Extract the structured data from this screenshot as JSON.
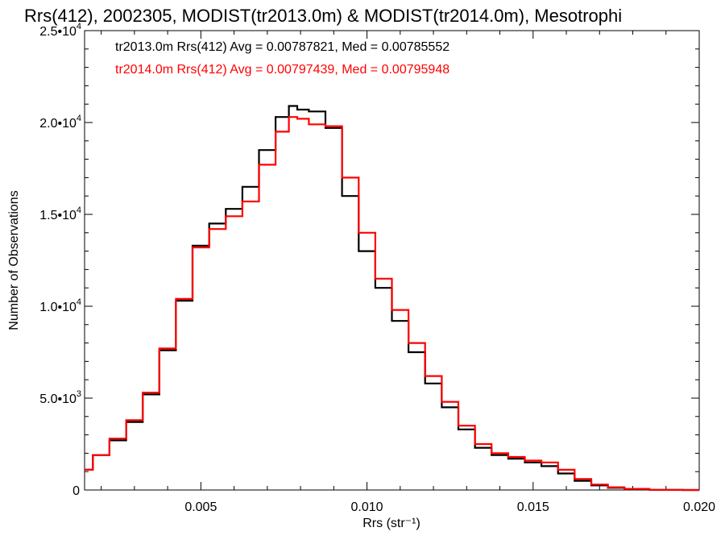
{
  "chart_data": {
    "type": "line",
    "title": "Rrs(412), 2002305, MODIST(tr2013.0m) & MODIST(tr2014.0m), Mesotrophi",
    "xlabel": "Rrs (str⁻¹)",
    "ylabel": "Number of Observations",
    "xlim": [
      0.0015,
      0.02
    ],
    "ylim": [
      0,
      25000
    ],
    "x_ticks": [
      0.005,
      0.01,
      0.015,
      0.02
    ],
    "x_tick_labels": [
      "0.005",
      "0.010",
      "0.015",
      "0.020"
    ],
    "y_ticks": [
      0,
      5000,
      10000,
      15000,
      20000,
      25000
    ],
    "y_tick_labels": [
      {
        "base": "0",
        "exp": ""
      },
      {
        "base": "5.0•10",
        "exp": "3"
      },
      {
        "base": "1.0•10",
        "exp": "4"
      },
      {
        "base": "1.5•10",
        "exp": "4"
      },
      {
        "base": "2.0•10",
        "exp": "4"
      },
      {
        "base": "2.5•10",
        "exp": "4"
      }
    ],
    "legend": [
      {
        "text": "tr2013.0m Rrs(412) Avg = 0.00787821, Med = 0.00785552",
        "color": "#000000"
      },
      {
        "text": "tr2014.0m Rrs(412) Avg = 0.00797439, Med = 0.00795948",
        "color": "#ff0000"
      }
    ],
    "legend_position": "top-left",
    "series": [
      {
        "color": "#000000",
        "x": [
          0.0015,
          0.002,
          0.0025,
          0.003,
          0.0035,
          0.004,
          0.0045,
          0.005,
          0.0055,
          0.006,
          0.0065,
          0.007,
          0.0075,
          0.0078,
          0.008,
          0.0085,
          0.009,
          0.0095,
          0.01,
          0.0105,
          0.011,
          0.0115,
          0.012,
          0.0125,
          0.013,
          0.0135,
          0.014,
          0.0145,
          0.015,
          0.0155,
          0.016,
          0.0165,
          0.017,
          0.0175,
          0.018,
          0.019,
          0.02
        ],
        "y": [
          1100,
          1900,
          2700,
          3700,
          5200,
          7600,
          10300,
          13300,
          14500,
          15300,
          16500,
          18500,
          20300,
          20900,
          20700,
          20600,
          19700,
          16000,
          13000,
          11000,
          9200,
          7500,
          5800,
          4500,
          3300,
          2300,
          1900,
          1700,
          1500,
          1300,
          900,
          500,
          250,
          120,
          50,
          10,
          0
        ]
      },
      {
        "color": "#ff0000",
        "x": [
          0.0015,
          0.002,
          0.0025,
          0.003,
          0.0035,
          0.004,
          0.0045,
          0.005,
          0.0055,
          0.006,
          0.0065,
          0.007,
          0.0075,
          0.0078,
          0.008,
          0.0085,
          0.009,
          0.0095,
          0.01,
          0.0105,
          0.011,
          0.0115,
          0.012,
          0.0125,
          0.013,
          0.0135,
          0.014,
          0.0145,
          0.015,
          0.0155,
          0.016,
          0.0165,
          0.017,
          0.0175,
          0.018,
          0.019,
          0.02
        ],
        "y": [
          1100,
          1900,
          2800,
          3800,
          5300,
          7700,
          10400,
          13200,
          14200,
          14900,
          15700,
          17700,
          19500,
          20300,
          20200,
          19900,
          19800,
          17000,
          14000,
          11500,
          9800,
          8000,
          6200,
          4800,
          3500,
          2500,
          2000,
          1800,
          1600,
          1500,
          1100,
          600,
          300,
          150,
          60,
          10,
          0
        ]
      }
    ]
  }
}
